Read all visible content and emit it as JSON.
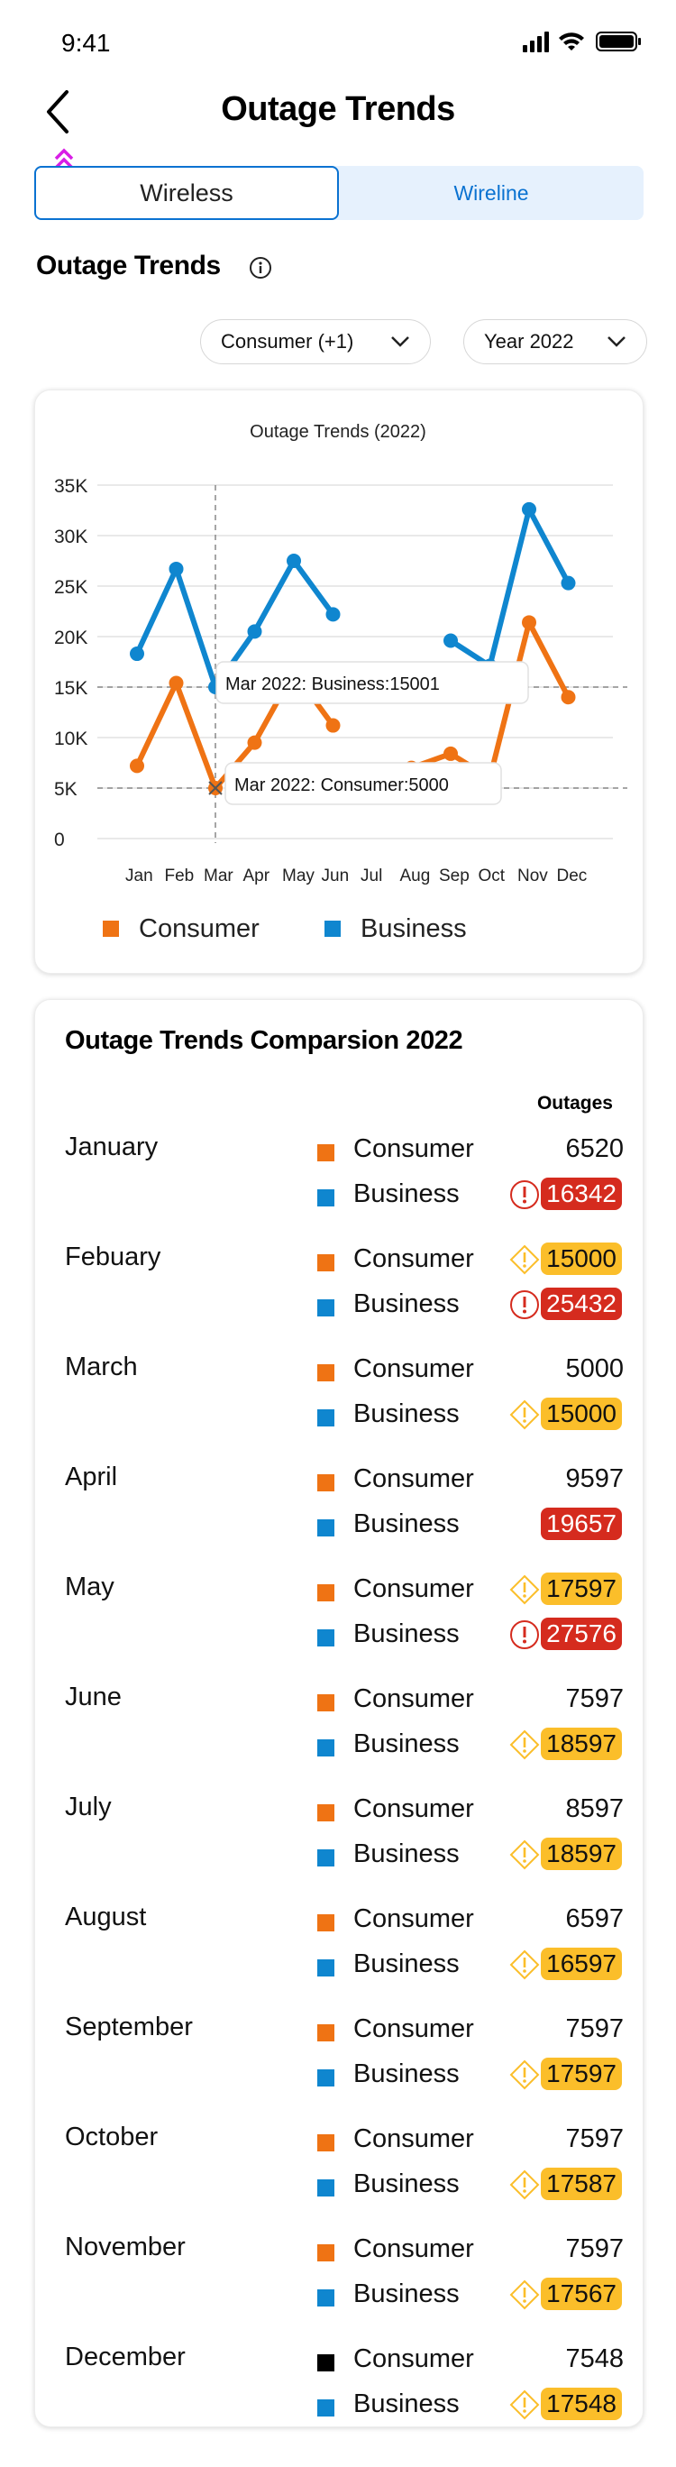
{
  "status_bar": {
    "time": "9:41"
  },
  "nav": {
    "title": "Outage Trends",
    "back_icon": "chevron-left-icon"
  },
  "segmented": {
    "tabs": [
      "Wireless",
      "Wireline"
    ],
    "selected": "Wireless"
  },
  "section": {
    "title": "Outage Trends",
    "info_icon": "info-icon"
  },
  "filters": {
    "segment": "Consumer (+1)",
    "year": "Year 2022"
  },
  "colors": {
    "consumer": "#ef7314",
    "business": "#0f86cf",
    "accent_blue": "#0a72d1",
    "red": "#d52b1e",
    "yellow": "#fbbe2a"
  },
  "chart_data": {
    "type": "line",
    "title": "Outage Trends (2022)",
    "categories": [
      "Jan",
      "Feb",
      "Mar",
      "Apr",
      "May",
      "Jun",
      "Jul",
      "Aug",
      "Sep",
      "Oct",
      "Nov",
      "Dec"
    ],
    "y_ticks": [
      "0",
      "5K",
      "10K",
      "15K",
      "20K",
      "25K",
      "30K",
      "35K"
    ],
    "ylim": [
      0,
      35000
    ],
    "grid": true,
    "legend_placement": "bottom",
    "series": [
      {
        "name": "Consumer",
        "values": [
          7200,
          15400,
          5000,
          9500,
          16500,
          11200,
          null,
          7000,
          8400,
          6000,
          21400,
          14000
        ]
      },
      {
        "name": "Business",
        "values": [
          18300,
          26700,
          15001,
          20500,
          27500,
          22200,
          null,
          null,
          19600,
          17100,
          32600,
          25300
        ]
      }
    ],
    "annotations": [
      {
        "text": "Mar 2022: Business:15001"
      },
      {
        "text": "Mar 2022: Consumer:5000"
      }
    ]
  },
  "legend": {
    "consumer": "Consumer",
    "business": "Business"
  },
  "comparison": {
    "title": "Outage Trends Comparsion 2022",
    "column_header": "Outages",
    "months": [
      {
        "name": "January",
        "consumer": {
          "value": "6520",
          "status": "none"
        },
        "business": {
          "value": "16342",
          "status": "critical"
        }
      },
      {
        "name": "Febuary",
        "consumer": {
          "value": "15000",
          "status": "warning"
        },
        "business": {
          "value": "25432",
          "status": "critical"
        }
      },
      {
        "name": "March",
        "consumer": {
          "value": "5000",
          "status": "none"
        },
        "business": {
          "value": "15000",
          "status": "warning"
        }
      },
      {
        "name": "April",
        "consumer": {
          "value": "9597",
          "status": "none"
        },
        "business": {
          "value": "19657",
          "status": "critical-noicon"
        }
      },
      {
        "name": "May",
        "consumer": {
          "value": "17597",
          "status": "warning"
        },
        "business": {
          "value": "27576",
          "status": "critical"
        }
      },
      {
        "name": "June",
        "consumer": {
          "value": "7597",
          "status": "none"
        },
        "business": {
          "value": "18597",
          "status": "warning"
        }
      },
      {
        "name": "July",
        "consumer": {
          "value": "8597",
          "status": "none"
        },
        "business": {
          "value": "18597",
          "status": "warning"
        }
      },
      {
        "name": "August",
        "consumer": {
          "value": "6597",
          "status": "none"
        },
        "business": {
          "value": "16597",
          "status": "warning"
        }
      },
      {
        "name": "September",
        "consumer": {
          "value": "7597",
          "status": "none"
        },
        "business": {
          "value": "17597",
          "status": "warning"
        }
      },
      {
        "name": "October",
        "consumer": {
          "value": "7597",
          "status": "none"
        },
        "business": {
          "value": "17587",
          "status": "warning"
        }
      },
      {
        "name": "November",
        "consumer": {
          "value": "7597",
          "status": "none"
        },
        "business": {
          "value": "17567",
          "status": "warning"
        }
      },
      {
        "name": "December",
        "consumer": {
          "value": "7548",
          "status": "none",
          "swatch": "#000000"
        },
        "business": {
          "value": "17548",
          "status": "warning"
        }
      }
    ],
    "consumer_label": "Consumer",
    "business_label": "Business"
  }
}
